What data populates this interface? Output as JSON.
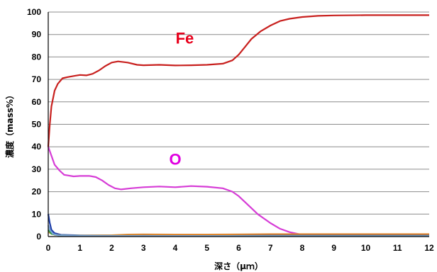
{
  "chart_data": {
    "type": "line",
    "title": "",
    "xlabel": "深さ（μｍ）",
    "ylabel": "濃度（mass%）",
    "xlim": [
      0,
      12
    ],
    "ylim": [
      0,
      100
    ],
    "x_ticks": [
      "0",
      "1",
      "2",
      "3",
      "4",
      "5",
      "6",
      "7",
      "8",
      "9",
      "10",
      "11",
      "12"
    ],
    "y_ticks": [
      "0",
      "10",
      "20",
      "30",
      "40",
      "50",
      "60",
      "70",
      "80",
      "90",
      "100"
    ],
    "grid": "horizontal",
    "annotations": [
      {
        "text": "Fe",
        "x": 4.3,
        "y": 86,
        "color": "#e8001c"
      },
      {
        "text": "O",
        "x": 4.0,
        "y": 32,
        "color": "#e000e0"
      }
    ],
    "series": [
      {
        "color": "#c8201e",
        "points": [
          [
            0,
            40
          ],
          [
            0.05,
            50
          ],
          [
            0.1,
            58
          ],
          [
            0.2,
            65
          ],
          [
            0.3,
            68
          ],
          [
            0.45,
            70.5
          ],
          [
            0.6,
            71
          ],
          [
            0.8,
            71.5
          ],
          [
            1.0,
            72
          ],
          [
            1.2,
            71.8
          ],
          [
            1.4,
            72.5
          ],
          [
            1.6,
            74
          ],
          [
            1.8,
            76
          ],
          [
            2.0,
            77.5
          ],
          [
            2.2,
            78
          ],
          [
            2.5,
            77.5
          ],
          [
            2.8,
            76.5
          ],
          [
            3.0,
            76.3
          ],
          [
            3.5,
            76.5
          ],
          [
            4.0,
            76.2
          ],
          [
            4.5,
            76.3
          ],
          [
            5.0,
            76.5
          ],
          [
            5.5,
            77
          ],
          [
            5.8,
            78.5
          ],
          [
            6.0,
            81
          ],
          [
            6.2,
            84.5
          ],
          [
            6.4,
            88
          ],
          [
            6.7,
            91.5
          ],
          [
            7.0,
            94
          ],
          [
            7.3,
            96
          ],
          [
            7.6,
            97
          ],
          [
            8.0,
            97.8
          ],
          [
            8.5,
            98.3
          ],
          [
            9.0,
            98.5
          ],
          [
            10.0,
            98.6
          ],
          [
            11.0,
            98.6
          ],
          [
            12.0,
            98.6
          ]
        ]
      },
      {
        "color": "#d63cd6",
        "points": [
          [
            0,
            40
          ],
          [
            0.1,
            36
          ],
          [
            0.2,
            32
          ],
          [
            0.35,
            29.5
          ],
          [
            0.5,
            27.5
          ],
          [
            0.8,
            26.8
          ],
          [
            1.0,
            27
          ],
          [
            1.3,
            27
          ],
          [
            1.5,
            26.5
          ],
          [
            1.7,
            25
          ],
          [
            1.9,
            23
          ],
          [
            2.1,
            21.5
          ],
          [
            2.3,
            21
          ],
          [
            2.6,
            21.5
          ],
          [
            3.0,
            22
          ],
          [
            3.5,
            22.3
          ],
          [
            4.0,
            22
          ],
          [
            4.5,
            22.5
          ],
          [
            5.0,
            22.2
          ],
          [
            5.5,
            21.5
          ],
          [
            5.8,
            20
          ],
          [
            6.0,
            18
          ],
          [
            6.3,
            14
          ],
          [
            6.6,
            10
          ],
          [
            7.0,
            6
          ],
          [
            7.3,
            3.5
          ],
          [
            7.6,
            2
          ],
          [
            8.0,
            0.8
          ],
          [
            8.5,
            0.3
          ],
          [
            9.0,
            0.2
          ],
          [
            12.0,
            0.2
          ]
        ]
      },
      {
        "color": "#1c3ca8",
        "points": [
          [
            0,
            10
          ],
          [
            0.05,
            6
          ],
          [
            0.1,
            3
          ],
          [
            0.2,
            1.5
          ],
          [
            0.4,
            0.8
          ],
          [
            1.0,
            0.5
          ],
          [
            12.0,
            0.5
          ]
        ]
      },
      {
        "color": "#e08830",
        "points": [
          [
            0,
            2
          ],
          [
            0.2,
            0.8
          ],
          [
            0.5,
            0.5
          ],
          [
            1.0,
            0.4
          ],
          [
            2.0,
            0.6
          ],
          [
            2.5,
            0.9
          ],
          [
            3.0,
            1.0
          ],
          [
            4.0,
            0.9
          ],
          [
            5.0,
            0.9
          ],
          [
            6.0,
            1.0
          ],
          [
            7.0,
            1.1
          ],
          [
            8.0,
            1.1
          ],
          [
            9.0,
            1.1
          ],
          [
            10.0,
            1.1
          ],
          [
            11.0,
            1.1
          ],
          [
            12.0,
            1.1
          ]
        ]
      },
      {
        "color": "#2e9a3a",
        "points": [
          [
            0,
            3
          ],
          [
            0.1,
            1.2
          ],
          [
            0.3,
            0.6
          ],
          [
            1.0,
            0.3
          ],
          [
            12.0,
            0.2
          ]
        ]
      },
      {
        "color": "#7aa6d6",
        "points": [
          [
            0,
            5
          ],
          [
            0.05,
            3
          ],
          [
            0.15,
            1.2
          ],
          [
            0.3,
            0.6
          ],
          [
            1.0,
            0.3
          ],
          [
            12.0,
            0.2
          ]
        ]
      }
    ]
  }
}
